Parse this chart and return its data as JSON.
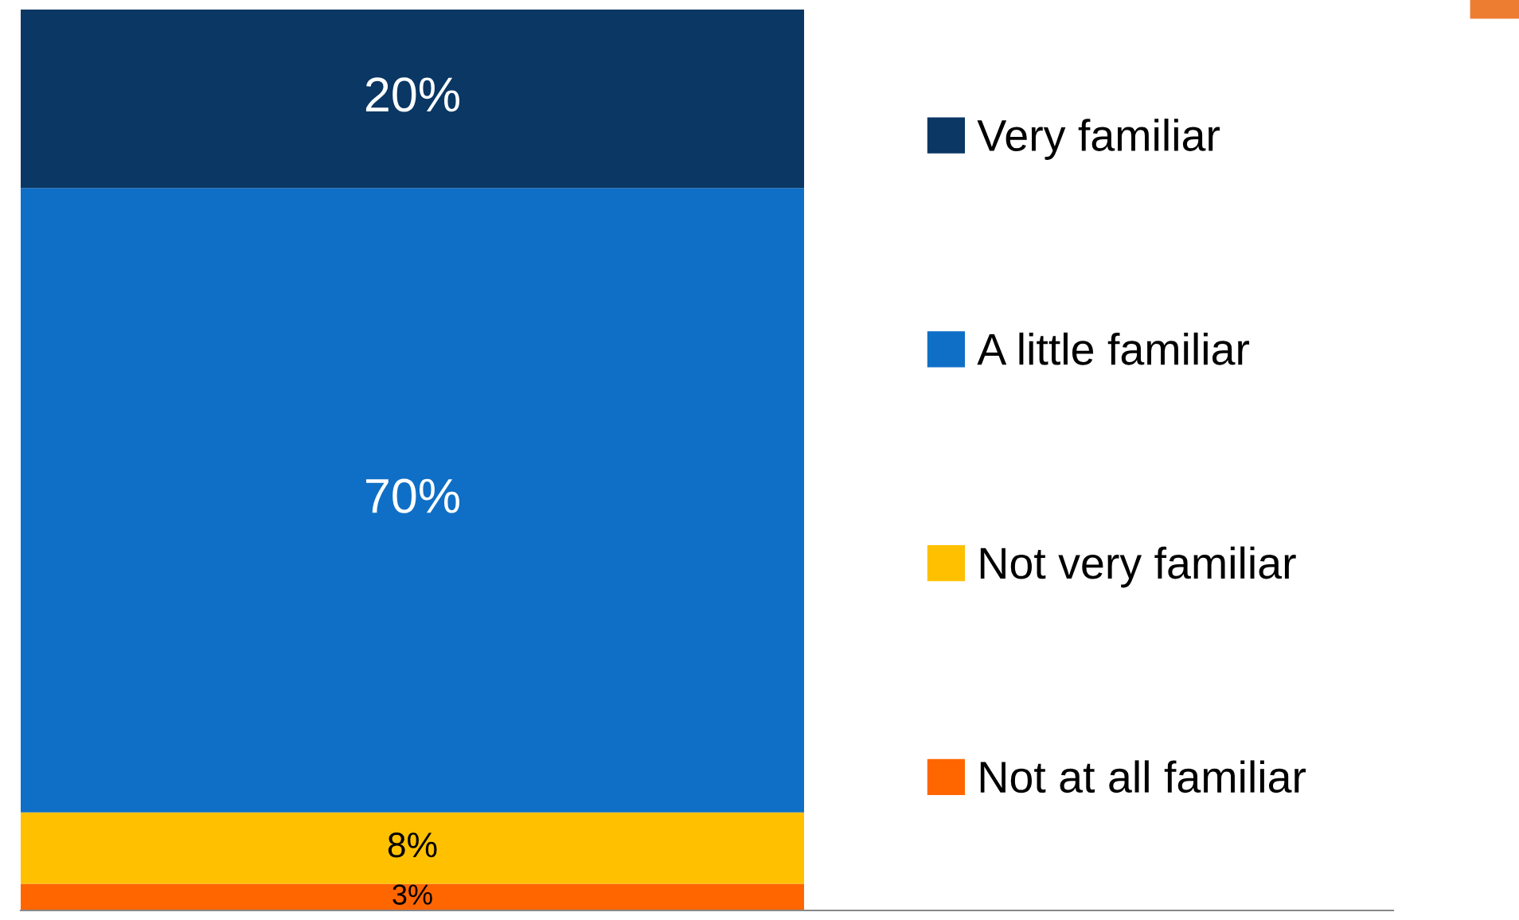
{
  "chart_data": {
    "type": "bar",
    "stacked": true,
    "categories": [
      null
    ],
    "legend": "right",
    "grid": false,
    "series": [
      {
        "name": "Not at all familiar",
        "color": "#ff6600",
        "values": [
          3
        ],
        "value_labels": [
          "3%"
        ]
      },
      {
        "name": "Not very familiar",
        "color": "#ffc000",
        "values": [
          8
        ],
        "value_labels": [
          "8%"
        ]
      },
      {
        "name": "A little familiar",
        "color": "#0f6fc6",
        "values": [
          70
        ],
        "value_labels": [
          "70%"
        ]
      },
      {
        "name": "Very familiar",
        "color": "#0a3764",
        "values": [
          20
        ],
        "value_labels": [
          "20%"
        ]
      }
    ]
  }
}
